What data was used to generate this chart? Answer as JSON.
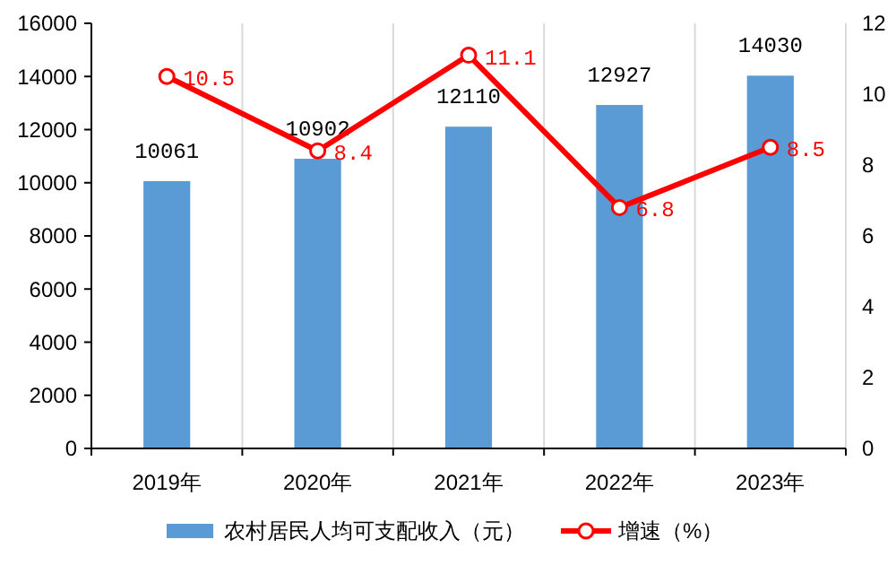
{
  "chart_data": {
    "type": "bar",
    "categories": [
      "2019年",
      "2020年",
      "2021年",
      "2022年",
      "2023年"
    ],
    "series": [
      {
        "name": "农村居民人均可支配收入（元）",
        "color": "#5b9bd5",
        "values": [
          10061,
          10902,
          12110,
          12927,
          14030
        ]
      },
      {
        "name": "增速（%）",
        "type": "line",
        "axis": "y2",
        "color": "#ff0000",
        "values": [
          10.5,
          8.4,
          11.1,
          6.8,
          8.5
        ],
        "marker": "circle"
      }
    ],
    "ylim": [
      0,
      16000
    ],
    "yticks": [
      0,
      2000,
      4000,
      6000,
      8000,
      10000,
      12000,
      14000,
      16000
    ],
    "y2lim": [
      0,
      12
    ],
    "y2ticks": [
      0,
      2,
      4,
      6,
      8,
      10,
      12
    ],
    "data_labels": true,
    "grid": "x",
    "legend": "bottom"
  }
}
